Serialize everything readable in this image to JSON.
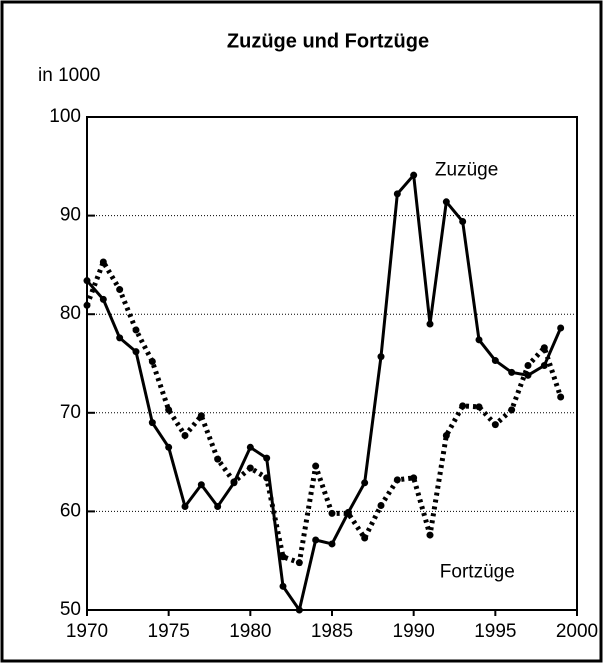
{
  "chart_data": {
    "type": "line",
    "title": "Zuzüge und Fortzüge",
    "y_axis_label": "in 1000",
    "x": [
      1970,
      1971,
      1972,
      1973,
      1974,
      1975,
      1976,
      1977,
      1978,
      1979,
      1980,
      1981,
      1982,
      1983,
      1984,
      1985,
      1986,
      1987,
      1988,
      1989,
      1990,
      1991,
      1992,
      1993,
      1994,
      1995,
      1996,
      1997,
      1998,
      1999
    ],
    "series": [
      {
        "name": "Zuzüge",
        "color": "#000000",
        "dash": "solid",
        "values": [
          83.4,
          81.5,
          77.6,
          76.2,
          69.0,
          66.5,
          60.5,
          62.7,
          60.5,
          62.9,
          66.5,
          65.4,
          52.4,
          50.0,
          57.1,
          56.7,
          59.9,
          62.9,
          75.7,
          92.2,
          94.1,
          79.0,
          91.4,
          89.4,
          77.4,
          75.3,
          74.1,
          73.8,
          74.8,
          78.6
        ]
      },
      {
        "name": "Fortzüge",
        "color": "#000000",
        "dash": "dotted",
        "values": [
          80.9,
          85.3,
          82.5,
          78.4,
          75.2,
          70.3,
          67.7,
          69.7,
          65.3,
          63.0,
          64.4,
          63.4,
          55.4,
          54.8,
          64.6,
          59.8,
          59.8,
          57.3,
          60.6,
          63.2,
          63.4,
          57.6,
          67.7,
          70.7,
          70.6,
          68.8,
          70.3,
          74.8,
          76.6,
          71.6
        ]
      }
    ],
    "xlim": [
      1970,
      2000
    ],
    "xticks": [
      1970,
      1975,
      1980,
      1985,
      1990,
      1995,
      2000
    ],
    "ylim": [
      50,
      100
    ],
    "yticks": [
      50,
      60,
      70,
      80,
      90,
      100
    ],
    "grid": true
  }
}
